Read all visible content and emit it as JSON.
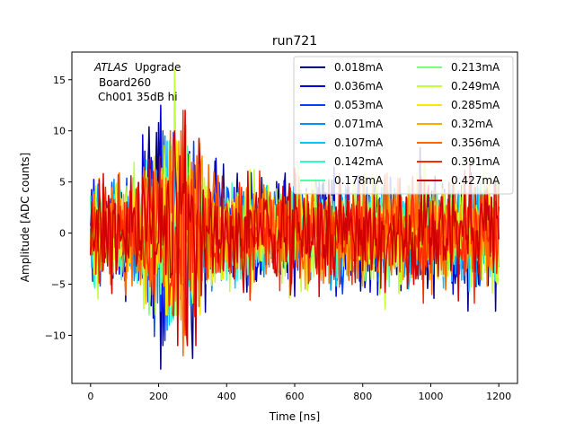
{
  "chart_data": {
    "type": "line",
    "title": "run721",
    "xlabel": "Time [ns]",
    "ylabel": "Amplitude [ADC counts]",
    "xlim": [
      -55,
      1255
    ],
    "ylim": [
      -14.7,
      17.7
    ],
    "xticks": [
      0,
      200,
      400,
      600,
      800,
      1000,
      1200
    ],
    "yticks": [
      -10,
      -5,
      0,
      5,
      10,
      15
    ],
    "grid": false,
    "legend_position": "top-right",
    "legend_columns": 2,
    "annotation": {
      "atlas": "ATLAS",
      "upgrade": "Upgrade",
      "board": "Board260",
      "channel": "Ch001 35dB hi"
    },
    "x_range": [
      0,
      1200
    ],
    "sample_spacing_ns": 3.125,
    "series": [
      {
        "name": "0.018mA",
        "color": "#000080",
        "min": -13.3,
        "max": 10.8
      },
      {
        "name": "0.036mA",
        "color": "#0000dd",
        "min": -11.0,
        "max": 12.5
      },
      {
        "name": "0.053mA",
        "color": "#0044ff",
        "min": -10.5,
        "max": 10.0
      },
      {
        "name": "0.071mA",
        "color": "#0090ff",
        "min": -9.5,
        "max": 9.5
      },
      {
        "name": "0.107mA",
        "color": "#00c8f8",
        "min": -9.0,
        "max": 9.0
      },
      {
        "name": "0.142mA",
        "color": "#2cffca",
        "min": -8.7,
        "max": 9.0
      },
      {
        "name": "0.178mA",
        "color": "#4dffaa",
        "min": -8.5,
        "max": 8.5
      },
      {
        "name": "0.213mA",
        "color": "#7dff7a",
        "min": -8.0,
        "max": 8.0
      },
      {
        "name": "0.249mA",
        "color": "#c1ff36",
        "min": -8.0,
        "max": 16.0
      },
      {
        "name": "0.285mA",
        "color": "#ffe600",
        "min": -8.0,
        "max": 9.0
      },
      {
        "name": "0.32mA",
        "color": "#ffa800",
        "min": -8.5,
        "max": 9.0
      },
      {
        "name": "0.356mA",
        "color": "#ff6800",
        "min": -12.0,
        "max": 10.0
      },
      {
        "name": "0.391mA",
        "color": "#ff2a00",
        "min": -10.0,
        "max": 12.0
      },
      {
        "name": "0.427mA",
        "color": "#d00000",
        "min": -11.0,
        "max": 12.0
      }
    ]
  }
}
